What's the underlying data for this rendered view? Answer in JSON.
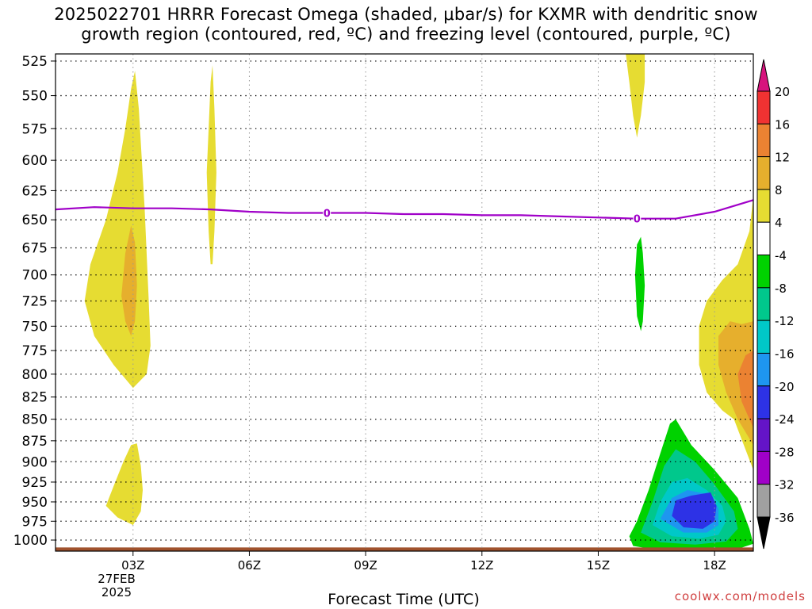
{
  "chart_data": {
    "type": "heatmap",
    "title_line1": "2025022701 HRRR Forecast Omega (shaded, μbar/s) for KXMR with dendritic snow",
    "title_line2": "growth region (contoured, red, ºC) and freezing level (contoured, purple, ºC)",
    "xlabel": "Forecast Time (UTC)",
    "x_ticks": [
      {
        "hour": 3,
        "label": "03Z"
      },
      {
        "hour": 6,
        "label": "06Z"
      },
      {
        "hour": 9,
        "label": "09Z"
      },
      {
        "hour": 12,
        "label": "12Z"
      },
      {
        "hour": 15,
        "label": "15Z"
      },
      {
        "hour": 18,
        "label": "18Z"
      }
    ],
    "date_line1": "27FEB",
    "date_line2": "2025",
    "xlim": [
      1,
      19
    ],
    "ylim_hpa": [
      1015,
      520
    ],
    "y_ticks": [
      525,
      550,
      575,
      600,
      625,
      650,
      675,
      700,
      725,
      750,
      775,
      800,
      825,
      850,
      875,
      900,
      925,
      950,
      975,
      1000
    ],
    "grid": true,
    "freezing_level": {
      "label": "0",
      "color": "#a000c8",
      "points": [
        [
          1,
          641
        ],
        [
          2,
          639
        ],
        [
          3,
          640
        ],
        [
          4,
          640
        ],
        [
          5,
          641
        ],
        [
          6,
          643
        ],
        [
          7,
          644
        ],
        [
          8,
          644
        ],
        [
          9,
          644
        ],
        [
          10,
          645
        ],
        [
          11,
          645
        ],
        [
          12,
          646
        ],
        [
          13,
          646
        ],
        [
          14,
          647
        ],
        [
          15,
          648
        ],
        [
          16,
          649
        ],
        [
          17,
          649
        ],
        [
          18,
          643
        ],
        [
          19,
          633
        ]
      ],
      "label_points": [
        [
          8,
          644
        ],
        [
          16,
          649
        ]
      ]
    },
    "omega_regions": [
      {
        "level": "4 to 8",
        "color": "#e6dc32",
        "points": [
          [
            1.75,
            725
          ],
          [
            1.9,
            690
          ],
          [
            2.3,
            650
          ],
          [
            2.6,
            610
          ],
          [
            2.8,
            575
          ],
          [
            2.95,
            545
          ],
          [
            3.05,
            532
          ],
          [
            3.15,
            560
          ],
          [
            3.3,
            640
          ],
          [
            3.4,
            720
          ],
          [
            3.45,
            770
          ],
          [
            3.35,
            800
          ],
          [
            3.0,
            815
          ],
          [
            2.5,
            790
          ],
          [
            2.0,
            760
          ]
        ]
      },
      {
        "level": "8 to 12",
        "color": "#e6af2d",
        "points": [
          [
            2.7,
            720
          ],
          [
            2.8,
            680
          ],
          [
            2.95,
            655
          ],
          [
            3.05,
            670
          ],
          [
            3.1,
            710
          ],
          [
            3.05,
            745
          ],
          [
            2.95,
            760
          ],
          [
            2.8,
            745
          ]
        ]
      },
      {
        "level": "4 to 8",
        "color": "#e6dc32",
        "points": [
          [
            4.9,
            610
          ],
          [
            4.95,
            575
          ],
          [
            5.0,
            540
          ],
          [
            5.05,
            528
          ],
          [
            5.1,
            560
          ],
          [
            5.15,
            610
          ],
          [
            5.1,
            660
          ],
          [
            5.05,
            690
          ],
          [
            5.0,
            690
          ],
          [
            4.95,
            660
          ]
        ]
      },
      {
        "level": "4 to 8",
        "color": "#e6dc32",
        "points": [
          [
            2.3,
            955
          ],
          [
            2.5,
            930
          ],
          [
            2.75,
            900
          ],
          [
            2.95,
            880
          ],
          [
            3.1,
            878
          ],
          [
            3.2,
            905
          ],
          [
            3.25,
            935
          ],
          [
            3.2,
            962
          ],
          [
            3.0,
            980
          ],
          [
            2.6,
            970
          ]
        ]
      },
      {
        "level": "4 to 8",
        "color": "#e6dc32",
        "points": [
          [
            15.7,
            518
          ],
          [
            16.2,
            518
          ],
          [
            16.2,
            540
          ],
          [
            16.1,
            565
          ],
          [
            16.0,
            582
          ],
          [
            15.9,
            565
          ],
          [
            15.8,
            540
          ]
        ]
      },
      {
        "level": "4 to 8",
        "color": "#e6dc32",
        "points": [
          [
            19.0,
            630
          ],
          [
            19.0,
            910
          ],
          [
            18.5,
            850
          ],
          [
            18.2,
            840
          ],
          [
            17.8,
            820
          ],
          [
            17.6,
            790
          ],
          [
            17.6,
            750
          ],
          [
            17.8,
            725
          ],
          [
            18.2,
            705
          ],
          [
            18.6,
            690
          ],
          [
            18.9,
            660
          ]
        ]
      },
      {
        "level": "8 to 12",
        "color": "#e6af2d",
        "points": [
          [
            19.0,
            745
          ],
          [
            19.0,
            880
          ],
          [
            18.6,
            850
          ],
          [
            18.3,
            820
          ],
          [
            18.1,
            790
          ],
          [
            18.1,
            760
          ],
          [
            18.4,
            745
          ],
          [
            18.7,
            748
          ]
        ]
      },
      {
        "level": "12 to 16",
        "color": "#eb8232",
        "points": [
          [
            19.0,
            775
          ],
          [
            19.0,
            860
          ],
          [
            18.7,
            830
          ],
          [
            18.6,
            800
          ],
          [
            18.8,
            780
          ]
        ]
      },
      {
        "level": "-4 to -8",
        "color": "#00d200",
        "points": [
          [
            15.8,
            995
          ],
          [
            16.0,
            975
          ],
          [
            16.3,
            935
          ],
          [
            16.6,
            890
          ],
          [
            16.85,
            855
          ],
          [
            17.0,
            850
          ],
          [
            17.4,
            880
          ],
          [
            18.0,
            910
          ],
          [
            18.6,
            945
          ],
          [
            18.9,
            985
          ],
          [
            19.0,
            1005
          ],
          [
            18.6,
            1012
          ],
          [
            17.5,
            1015
          ],
          [
            16.5,
            1013
          ],
          [
            15.9,
            1008
          ]
        ]
      },
      {
        "level": "-8 to -12",
        "color": "#00c88c",
        "points": [
          [
            16.1,
            990
          ],
          [
            16.4,
            950
          ],
          [
            16.7,
            905
          ],
          [
            17.0,
            885
          ],
          [
            17.5,
            900
          ],
          [
            18.0,
            928
          ],
          [
            18.5,
            962
          ],
          [
            18.6,
            985
          ],
          [
            18.3,
            1002
          ],
          [
            17.5,
            1006
          ],
          [
            16.6,
            1003
          ]
        ]
      },
      {
        "level": "-12 to -16",
        "color": "#00c8c8",
        "points": [
          [
            16.4,
            980
          ],
          [
            16.6,
            950
          ],
          [
            16.9,
            925
          ],
          [
            17.3,
            920
          ],
          [
            17.8,
            935
          ],
          [
            18.2,
            955
          ],
          [
            18.3,
            975
          ],
          [
            18.1,
            993
          ],
          [
            17.6,
            998
          ],
          [
            16.9,
            995
          ]
        ]
      },
      {
        "level": "-16 to -20",
        "color": "#1e96f0",
        "points": [
          [
            16.6,
            972
          ],
          [
            16.9,
            945
          ],
          [
            17.3,
            935
          ],
          [
            17.8,
            940
          ],
          [
            18.1,
            958
          ],
          [
            18.1,
            980
          ],
          [
            17.8,
            990
          ],
          [
            17.2,
            990
          ]
        ]
      },
      {
        "level": "-20 to -24",
        "color": "#2d32e6",
        "points": [
          [
            16.9,
            968
          ],
          [
            17.0,
            948
          ],
          [
            17.4,
            942
          ],
          [
            17.9,
            938
          ],
          [
            18.05,
            955
          ],
          [
            18.0,
            975
          ],
          [
            17.7,
            985
          ],
          [
            17.2,
            983
          ]
        ]
      },
      {
        "level": "-4 to -8",
        "color": "#00d200",
        "points": [
          [
            15.95,
            700
          ],
          [
            16.0,
            672
          ],
          [
            16.1,
            665
          ],
          [
            16.15,
            680
          ],
          [
            16.2,
            710
          ],
          [
            16.15,
            745
          ],
          [
            16.1,
            755
          ],
          [
            16.0,
            740
          ]
        ]
      }
    ],
    "terrain": {
      "color": "#a0522d",
      "from_hpa": 1010,
      "label": ""
    },
    "colorbar": {
      "labels": [
        "20",
        "16",
        "12",
        "8",
        "4",
        "-4",
        "-8",
        "-12",
        "-16",
        "-20",
        "-24",
        "-28",
        "-32",
        "-36"
      ],
      "bins": [
        "#d7147d",
        "#f03232",
        "#eb8232",
        "#e6af2d",
        "#e6dc32",
        "#ffffff",
        "#00d200",
        "#00c88c",
        "#00c8c8",
        "#1e96f0",
        "#2d32e6",
        "#6414c8",
        "#a000c8",
        "#a0a0a0",
        "#000000"
      ]
    }
  },
  "credit": "coolwx.com/models"
}
